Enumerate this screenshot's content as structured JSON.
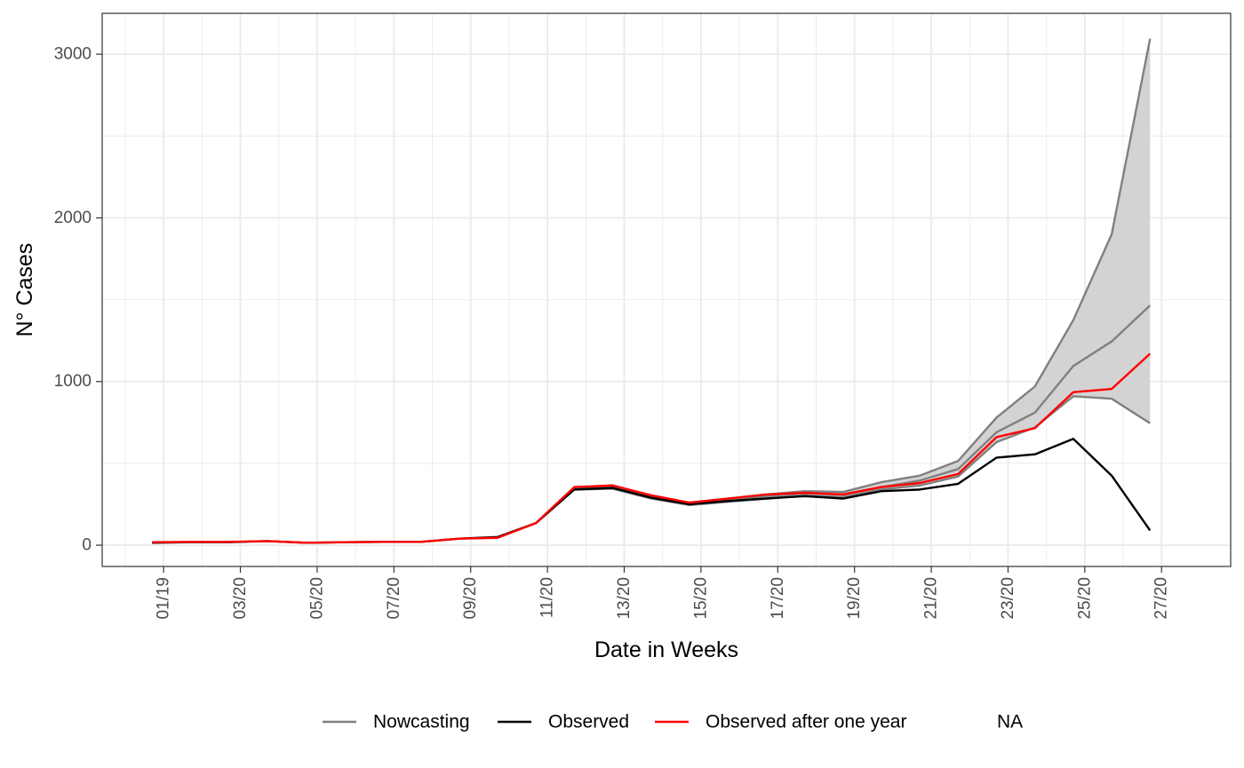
{
  "chart_data": {
    "type": "line",
    "title": "",
    "xlabel": "Date in Weeks",
    "ylabel": "N° Cases",
    "x_ticks": [
      "01/19",
      "03/20",
      "05/20",
      "07/20",
      "09/20",
      "11/20",
      "13/20",
      "15/20",
      "17/20",
      "19/20",
      "21/20",
      "23/20",
      "25/20",
      "27/20"
    ],
    "x_weeks": [
      1,
      3,
      5,
      7,
      9,
      11,
      13,
      15,
      17,
      19,
      21,
      23,
      25,
      27
    ],
    "x_range": [
      -0.6,
      28.8
    ],
    "y_ticks": [
      0,
      1000,
      2000,
      3000
    ],
    "ylim": [
      -130,
      3250
    ],
    "grid": true,
    "legend_position": "bottom",
    "series": [
      {
        "name": "Observed",
        "color": "#000000",
        "weeks": [
          0.7,
          1.7,
          2.7,
          3.7,
          4.7,
          5.7,
          6.7,
          7.7,
          8.7,
          9.7,
          10.7,
          11.7,
          12.7,
          13.7,
          14.7,
          15.7,
          16.7,
          17.7,
          18.7,
          19.7,
          20.7,
          21.7,
          22.7,
          23.7,
          24.7,
          25.7,
          26.7
        ],
        "values": [
          15,
          18,
          18,
          25,
          15,
          18,
          20,
          20,
          40,
          50,
          135,
          340,
          350,
          290,
          250,
          270,
          285,
          300,
          285,
          330,
          340,
          375,
          535,
          555,
          650,
          425,
          90
        ]
      },
      {
        "name": "Observed after one year",
        "color": "#ff0000",
        "weeks": [
          0.7,
          1.7,
          2.7,
          3.7,
          4.7,
          5.7,
          6.7,
          7.7,
          8.7,
          9.7,
          10.7,
          11.7,
          12.7,
          13.7,
          14.7,
          15.7,
          16.7,
          17.7,
          18.7,
          19.7,
          20.7,
          21.7,
          22.7,
          23.7,
          24.7,
          25.7,
          26.7
        ],
        "values": [
          18,
          20,
          20,
          25,
          15,
          18,
          20,
          20,
          40,
          45,
          135,
          355,
          365,
          305,
          260,
          285,
          310,
          320,
          310,
          355,
          380,
          435,
          660,
          715,
          935,
          955,
          1170
        ]
      },
      {
        "name": "Nowcasting",
        "color": "#808080",
        "weeks": [
          11.7,
          12.7,
          13.7,
          14.7,
          15.7,
          16.7,
          17.7,
          18.7,
          19.7,
          20.7,
          21.7,
          22.7,
          23.7,
          24.7,
          25.7,
          26.7
        ],
        "values": [
          345,
          355,
          290,
          250,
          275,
          300,
          315,
          310,
          355,
          395,
          465,
          690,
          810,
          1095,
          1245,
          1465
        ]
      }
    ],
    "band": {
      "name": "Nowcasting",
      "fill": "#d3d3d3",
      "edge_color": "#808080",
      "weeks": [
        11.7,
        12.7,
        13.7,
        14.7,
        15.7,
        16.7,
        17.7,
        18.7,
        19.7,
        20.7,
        21.7,
        22.7,
        23.7,
        24.7,
        25.7,
        26.7
      ],
      "lower": [
        340,
        345,
        285,
        245,
        265,
        285,
        300,
        295,
        340,
        365,
        420,
        630,
        720,
        910,
        895,
        745
      ],
      "upper": [
        350,
        365,
        300,
        260,
        285,
        310,
        330,
        325,
        385,
        425,
        515,
        780,
        970,
        1375,
        1900,
        3095
      ]
    },
    "legend": [
      {
        "label": "Nowcasting",
        "color": "#808080"
      },
      {
        "label": "Observed",
        "color": "#000000"
      },
      {
        "label": "Observed after one year",
        "color": "#ff0000"
      },
      {
        "label": "NA",
        "color": ""
      }
    ]
  }
}
